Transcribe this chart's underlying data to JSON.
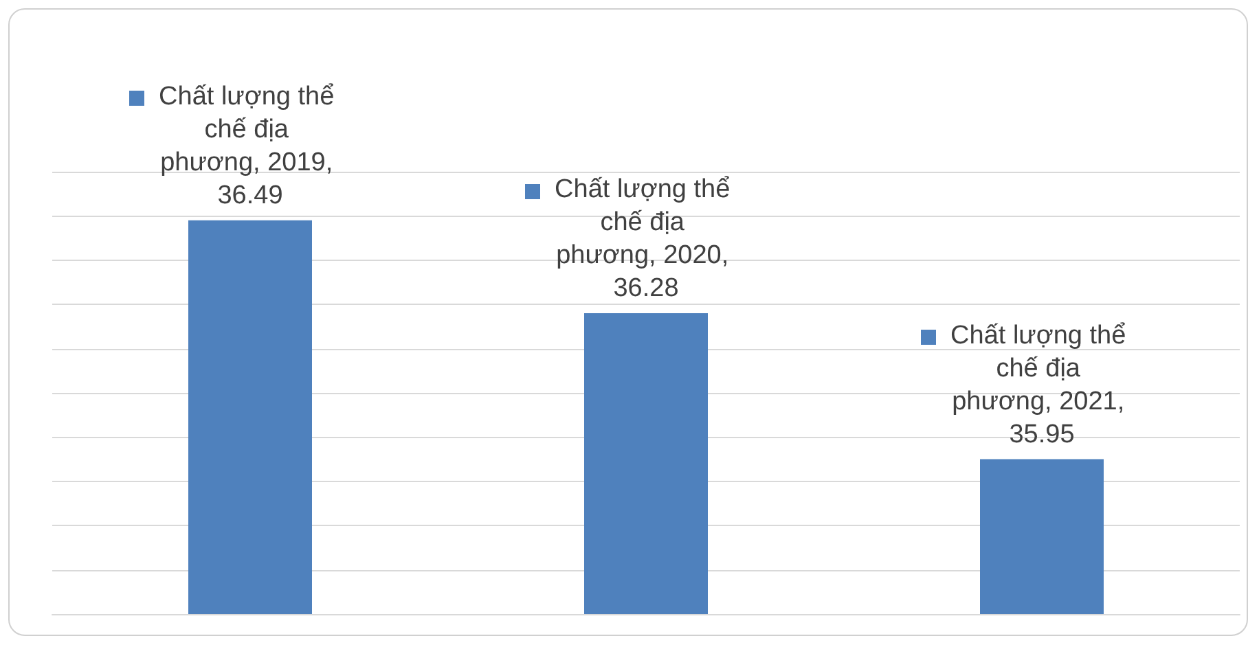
{
  "chart_data": {
    "type": "bar",
    "categories": [
      null,
      null,
      null
    ],
    "series": [
      {
        "color": "#4f81bd",
        "values": [
          36.49,
          36.28,
          35.95
        ],
        "value_labels": [
          "Chất lượng thể chế địa phương, 2019, 36.49",
          "Chất lượng thể chế địa phương, 2020, 36.28",
          "Chất lượng thể chế địa phương, 2021, 35.95"
        ]
      }
    ],
    "ylim": [
      35.6,
      36.6
    ],
    "yticks": [
      {
        "value": 35.6,
        "label": null
      },
      {
        "value": 35.7,
        "label": null
      },
      {
        "value": 35.8,
        "label": null
      },
      {
        "value": 35.9,
        "label": null
      },
      {
        "value": 36.0,
        "label": null
      },
      {
        "value": 36.1,
        "label": null
      },
      {
        "value": 36.2,
        "label": null
      },
      {
        "value": 36.3,
        "label": null
      },
      {
        "value": 36.4,
        "label": null
      },
      {
        "value": 36.5,
        "label": null
      },
      {
        "value": 36.6,
        "label": null
      }
    ],
    "grid": "y"
  }
}
